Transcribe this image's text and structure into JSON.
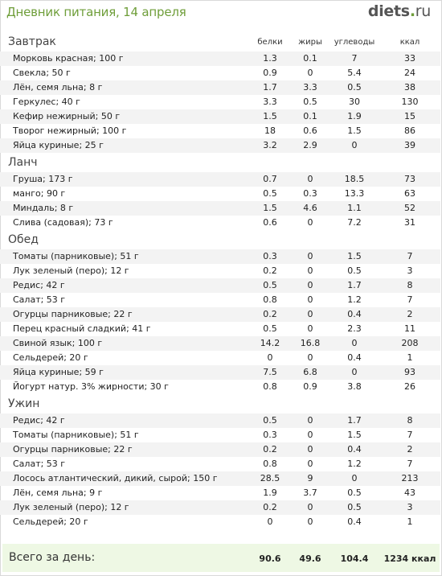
{
  "header": {
    "title": "Дневник питания, 14 апреля",
    "logo_main": "diets",
    "logo_dot": ".",
    "logo_tld": "ru"
  },
  "columns": {
    "protein": "белки",
    "fat": "жиры",
    "carbs": "углеводы",
    "kcal": "ккал"
  },
  "meals": [
    {
      "name": "Завтрак",
      "items": [
        {
          "food": "Морковь красная; 100 г",
          "protein": "1.3",
          "fat": "0.1",
          "carbs": "7",
          "kcal": "33"
        },
        {
          "food": "Свекла; 50 г",
          "protein": "0.9",
          "fat": "0",
          "carbs": "5.4",
          "kcal": "24"
        },
        {
          "food": "Лён, семя льна; 8 г",
          "protein": "1.7",
          "fat": "3.3",
          "carbs": "0.5",
          "kcal": "38"
        },
        {
          "food": "Геркулес; 40 г",
          "protein": "3.3",
          "fat": "0.5",
          "carbs": "30",
          "kcal": "130"
        },
        {
          "food": "Кефир нежирный; 50 г",
          "protein": "1.5",
          "fat": "0.1",
          "carbs": "1.9",
          "kcal": "15"
        },
        {
          "food": "Творог нежирный; 100 г",
          "protein": "18",
          "fat": "0.6",
          "carbs": "1.5",
          "kcal": "86"
        },
        {
          "food": "Яйца куриные; 25 г",
          "protein": "3.2",
          "fat": "2.9",
          "carbs": "0",
          "kcal": "39"
        }
      ]
    },
    {
      "name": "Ланч",
      "items": [
        {
          "food": "Груша; 173 г",
          "protein": "0.7",
          "fat": "0",
          "carbs": "18.5",
          "kcal": "73"
        },
        {
          "food": "манго; 90 г",
          "protein": "0.5",
          "fat": "0.3",
          "carbs": "13.3",
          "kcal": "63"
        },
        {
          "food": "Миндаль; 8 г",
          "protein": "1.5",
          "fat": "4.6",
          "carbs": "1.1",
          "kcal": "52"
        },
        {
          "food": "Слива (садовая); 73 г",
          "protein": "0.6",
          "fat": "0",
          "carbs": "7.2",
          "kcal": "31"
        }
      ]
    },
    {
      "name": "Обед",
      "items": [
        {
          "food": "Томаты (парниковые); 51 г",
          "protein": "0.3",
          "fat": "0",
          "carbs": "1.5",
          "kcal": "7"
        },
        {
          "food": "Лук зеленый (перо); 12 г",
          "protein": "0.2",
          "fat": "0",
          "carbs": "0.5",
          "kcal": "3"
        },
        {
          "food": "Редис; 42 г",
          "protein": "0.5",
          "fat": "0",
          "carbs": "1.7",
          "kcal": "8"
        },
        {
          "food": "Салат; 53 г",
          "protein": "0.8",
          "fat": "0",
          "carbs": "1.2",
          "kcal": "7"
        },
        {
          "food": "Огурцы парниковые; 22 г",
          "protein": "0.2",
          "fat": "0",
          "carbs": "0.4",
          "kcal": "2"
        },
        {
          "food": "Перец красный сладкий; 41 г",
          "protein": "0.5",
          "fat": "0",
          "carbs": "2.3",
          "kcal": "11"
        },
        {
          "food": "Свиной язык; 100 г",
          "protein": "14.2",
          "fat": "16.8",
          "carbs": "0",
          "kcal": "208"
        },
        {
          "food": "Сельдерей; 20 г",
          "protein": "0",
          "fat": "0",
          "carbs": "0.4",
          "kcal": "1"
        },
        {
          "food": "Яйца куриные; 59 г",
          "protein": "7.5",
          "fat": "6.8",
          "carbs": "0",
          "kcal": "93"
        },
        {
          "food": "Йогурт натур. 3% жирности; 30 г",
          "protein": "0.8",
          "fat": "0.9",
          "carbs": "3.8",
          "kcal": "26"
        }
      ]
    },
    {
      "name": "Ужин",
      "items": [
        {
          "food": "Редис; 42 г",
          "protein": "0.5",
          "fat": "0",
          "carbs": "1.7",
          "kcal": "8"
        },
        {
          "food": "Томаты (парниковые); 51 г",
          "protein": "0.3",
          "fat": "0",
          "carbs": "1.5",
          "kcal": "7"
        },
        {
          "food": "Огурцы парниковые; 22 г",
          "protein": "0.2",
          "fat": "0",
          "carbs": "0.4",
          "kcal": "2"
        },
        {
          "food": "Салат; 53 г",
          "protein": "0.8",
          "fat": "0",
          "carbs": "1.2",
          "kcal": "7"
        },
        {
          "food": "Лосось атлантический, дикий, сырой; 150 г",
          "protein": "28.5",
          "fat": "9",
          "carbs": "0",
          "kcal": "213"
        },
        {
          "food": "Лён, семя льна; 9 г",
          "protein": "1.9",
          "fat": "3.7",
          "carbs": "0.5",
          "kcal": "43"
        },
        {
          "food": "Лук зеленый (перо); 12 г",
          "protein": "0.2",
          "fat": "0",
          "carbs": "0.5",
          "kcal": "3"
        },
        {
          "food": "Сельдерей; 20 г",
          "protein": "0",
          "fat": "0",
          "carbs": "0.4",
          "kcal": "1"
        }
      ]
    }
  ],
  "total": {
    "label": "Всего за день:",
    "protein": "90.6",
    "fat": "49.6",
    "carbs": "104.4",
    "kcal": "1234 ккал"
  }
}
